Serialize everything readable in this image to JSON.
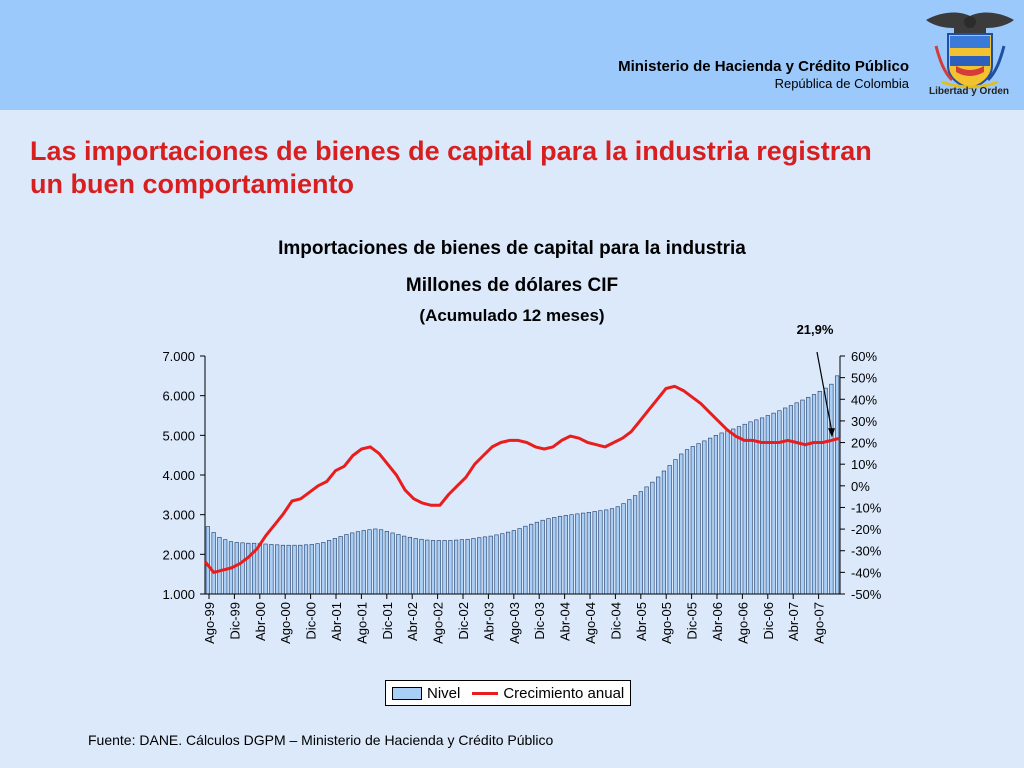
{
  "header": {
    "ministry_name": "Ministerio de Hacienda y Crédito Público",
    "country": "República de Colombia",
    "motto": "Libertad y Orden"
  },
  "slide_title": "Las importaciones de bienes de capital para la industria registran un buen comportamiento",
  "source": "Fuente: DANE. Cálculos DGPM – Ministerio de Hacienda y Crédito Público",
  "colors": {
    "title_red": "#d81f1f",
    "header_blue": "#9cc9fb",
    "background": "#dbe9fb",
    "bar_fill": "#a9cff7",
    "line_red": "#ea1d1d"
  },
  "chart_data": {
    "type": "bar",
    "title": "Importaciones de bienes de capital para la industria",
    "subtitle": "Millones de dólares CIF",
    "note": "(Acumulado 12 meses)",
    "annotation": "21,9%",
    "x_tick_labels": [
      "Ago-99",
      "Dic-99",
      "Abr-00",
      "Ago-00",
      "Dic-00",
      "Abr-01",
      "Ago-01",
      "Dic-01",
      "Abr-02",
      "Ago-02",
      "Dic-02",
      "Abr-03",
      "Ago-03",
      "Dic-03",
      "Abr-04",
      "Ago-04",
      "Dic-04",
      "Abr-05",
      "Ago-05",
      "Dic-05",
      "Abr-06",
      "Ago-06",
      "Dic-06",
      "Abr-07",
      "Ago-07"
    ],
    "y_left": {
      "ylim": [
        1000,
        7000
      ],
      "ticks": [
        "1.000",
        "2.000",
        "3.000",
        "4.000",
        "5.000",
        "6.000",
        "7.000"
      ]
    },
    "y_right": {
      "ylim": [
        -50,
        60
      ],
      "ticks": [
        "-50%",
        "-40%",
        "-30%",
        "-20%",
        "-10%",
        "0%",
        "10%",
        "20%",
        "30%",
        "40%",
        "50%",
        "60%"
      ]
    },
    "grid": false,
    "legend_position": "bottom",
    "series": [
      {
        "name": "Nivel",
        "type": "bar",
        "axis": "left",
        "values": [
          2700,
          2550,
          2430,
          2370,
          2320,
          2300,
          2290,
          2280,
          2280,
          2270,
          2260,
          2250,
          2240,
          2230,
          2230,
          2230,
          2230,
          2240,
          2250,
          2270,
          2300,
          2350,
          2400,
          2450,
          2500,
          2540,
          2570,
          2600,
          2620,
          2640,
          2620,
          2580,
          2540,
          2500,
          2460,
          2430,
          2400,
          2380,
          2360,
          2350,
          2350,
          2350,
          2350,
          2360,
          2370,
          2380,
          2400,
          2420,
          2440,
          2460,
          2490,
          2520,
          2560,
          2600,
          2650,
          2710,
          2760,
          2810,
          2860,
          2900,
          2930,
          2960,
          2980,
          3000,
          3020,
          3040,
          3060,
          3080,
          3100,
          3120,
          3150,
          3200,
          3280,
          3380,
          3480,
          3580,
          3700,
          3820,
          3950,
          4100,
          4240,
          4390,
          4530,
          4640,
          4720,
          4790,
          4860,
          4930,
          5000,
          5060,
          5110,
          5160,
          5220,
          5280,
          5340,
          5390,
          5440,
          5500,
          5560,
          5620,
          5690,
          5750,
          5820,
          5890,
          5960,
          6030,
          6110,
          6190,
          6290,
          6500
        ]
      },
      {
        "name": "Crecimiento anual",
        "type": "line",
        "axis": "right",
        "values": [
          -35,
          -40,
          -39,
          -38,
          -36,
          -33,
          -29,
          -23,
          -18,
          -13,
          -7,
          -6,
          -3,
          0,
          2,
          7,
          9,
          14,
          17,
          18,
          15,
          10,
          5,
          -2,
          -6,
          -8,
          -9,
          -9,
          -4,
          0,
          4,
          10,
          14,
          18,
          20,
          21,
          21,
          20,
          18,
          17,
          18,
          21,
          23,
          22,
          20,
          19,
          18,
          20,
          22,
          25,
          30,
          35,
          40,
          45,
          46,
          44,
          41,
          38,
          34,
          30,
          26,
          23,
          21,
          21,
          20,
          20,
          20,
          21,
          20,
          19,
          20,
          20,
          21,
          22
        ]
      }
    ]
  }
}
